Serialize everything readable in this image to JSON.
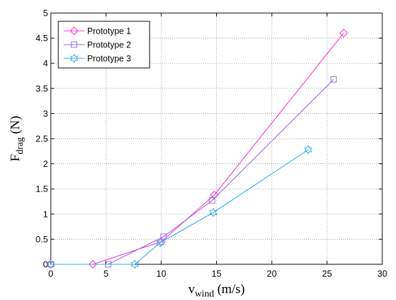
{
  "chart_data": {
    "type": "line",
    "title": "",
    "xlabel": {
      "main": "v",
      "sub": "wind",
      "unit": " (m/s)"
    },
    "ylabel": {
      "main": "F",
      "sub": "drag",
      "unit": " (N)"
    },
    "xlim": [
      0,
      30
    ],
    "ylim": [
      0,
      5
    ],
    "xticks": [
      "0",
      "5",
      "10",
      "15",
      "20",
      "25",
      "30"
    ],
    "yticks": [
      "0",
      "0.5",
      "1",
      "1.5",
      "2",
      "2.5",
      "3",
      "3.5",
      "4",
      "4.5",
      "5"
    ],
    "grid": true,
    "legend_position": "top-left",
    "series": [
      {
        "name": "Prototype 1",
        "color": "#ff33cc",
        "marker": "diamond",
        "x": [
          0,
          3.8,
          10,
          14.8,
          26.5
        ],
        "y": [
          0,
          0,
          0.45,
          1.38,
          4.6
        ]
      },
      {
        "name": "Prototype 2",
        "color": "#9966dd",
        "marker": "square",
        "x": [
          0,
          5.2,
          10.2,
          14.6,
          25.6
        ],
        "y": [
          0,
          0,
          0.55,
          1.27,
          3.68
        ]
      },
      {
        "name": "Prototype 3",
        "color": "#33aaee",
        "marker": "hexagram",
        "x": [
          0,
          7.6,
          9.9,
          14.7,
          23.3
        ],
        "y": [
          0,
          0,
          0.43,
          1.03,
          2.28
        ]
      }
    ]
  }
}
